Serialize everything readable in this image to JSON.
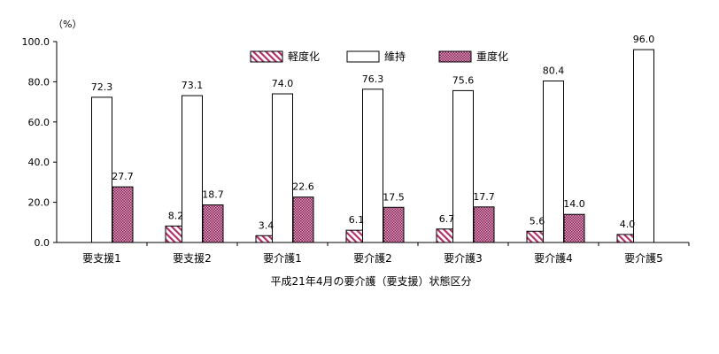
{
  "chart_data": {
    "type": "bar",
    "unit": "（%）",
    "xlabel": "平成21年4月の要介護（要支援）状態区分",
    "ylabel": "",
    "ylim": [
      0,
      100
    ],
    "yticks": [
      "0.0",
      "20.0",
      "40.0",
      "60.0",
      "80.0",
      "100.0"
    ],
    "categories": [
      "要支援1",
      "要支援2",
      "要介護1",
      "要介護2",
      "要介護3",
      "要介護4",
      "要介護5"
    ],
    "series": [
      {
        "name": "軽度化",
        "values": [
          null,
          8.2,
          3.4,
          6.1,
          6.7,
          5.6,
          4.0
        ],
        "labels": [
          "",
          "8.2",
          "3.4",
          "6.1",
          "6.7",
          "5.6",
          "4.0"
        ]
      },
      {
        "name": "維持",
        "values": [
          72.3,
          73.1,
          74.0,
          76.3,
          75.6,
          80.4,
          96.0
        ],
        "labels": [
          "72.3",
          "73.1",
          "74.0",
          "76.3",
          "75.6",
          "80.4",
          "96.0"
        ]
      },
      {
        "name": "重度化",
        "values": [
          27.7,
          18.7,
          22.6,
          17.5,
          17.7,
          14.0,
          null
        ],
        "labels": [
          "27.7",
          "18.7",
          "22.6",
          "17.5",
          "17.7",
          "14.0",
          ""
        ]
      }
    ],
    "legend_position": "top-center",
    "grid": false,
    "colors": {
      "lighter": "#b0306a",
      "maintain": "#ffffff",
      "heavier": "#b0306a"
    }
  }
}
